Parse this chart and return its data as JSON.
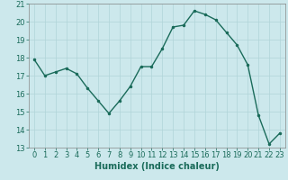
{
  "x": [
    0,
    1,
    2,
    3,
    4,
    5,
    6,
    7,
    8,
    9,
    10,
    11,
    12,
    13,
    14,
    15,
    16,
    17,
    18,
    19,
    20,
    21,
    22,
    23
  ],
  "y": [
    17.9,
    17.0,
    17.2,
    17.4,
    17.1,
    16.3,
    15.6,
    14.9,
    15.6,
    16.4,
    17.5,
    17.5,
    18.5,
    19.7,
    19.8,
    20.6,
    20.4,
    20.1,
    19.4,
    18.7,
    17.6,
    14.8,
    13.2,
    13.8
  ],
  "line_color": "#1a6b5a",
  "marker": ".",
  "marker_size": 3,
  "line_width": 1.0,
  "xlabel": "Humidex (Indice chaleur)",
  "xlim": [
    -0.5,
    23.5
  ],
  "ylim": [
    13,
    21
  ],
  "yticks": [
    13,
    14,
    15,
    16,
    17,
    18,
    19,
    20,
    21
  ],
  "xticks": [
    0,
    1,
    2,
    3,
    4,
    5,
    6,
    7,
    8,
    9,
    10,
    11,
    12,
    13,
    14,
    15,
    16,
    17,
    18,
    19,
    20,
    21,
    22,
    23
  ],
  "bg_color": "#cce8ec",
  "grid_color": "#b0d4d8",
  "label_color": "#1a6b5a",
  "tick_font_size": 6,
  "xlabel_font_size": 7
}
